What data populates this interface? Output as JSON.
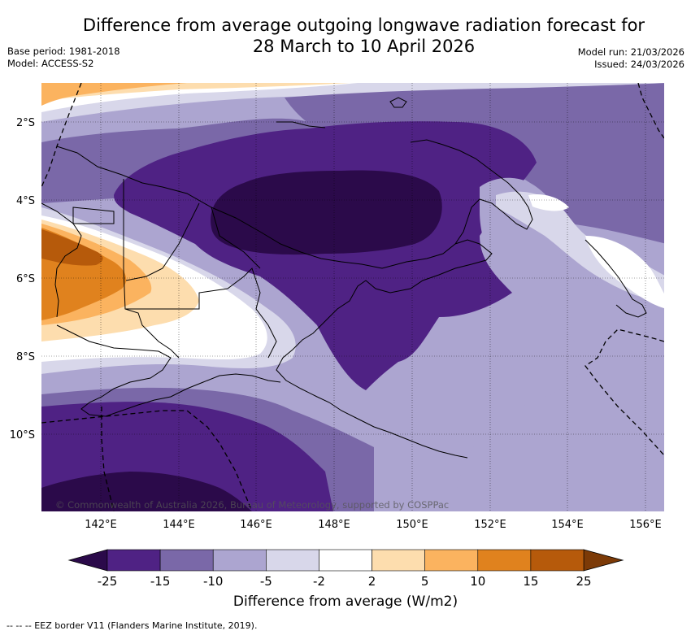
{
  "title_line1": "Difference from average outgoing longwave radiation forecast for",
  "title_line2": "28 March to 10 April 2026",
  "base_period": "Base period: 1981-2018",
  "model": "Model: ACCESS-S2",
  "model_run": "Model run: 21/03/2026",
  "issued": "Issued: 24/03/2026",
  "copyright": "© Commonwealth of Australia 2026, Bureau of Meteorology, supported by COSPPac",
  "lat_ticks": [
    "2°S",
    "4°S",
    "6°S",
    "8°S",
    "10°S"
  ],
  "lon_ticks": [
    "142°E",
    "144°E",
    "146°E",
    "148°E",
    "150°E",
    "152°E",
    "154°E",
    "156°E"
  ],
  "colorbar": {
    "ticks": [
      "-25",
      "-15",
      "-10",
      "-5",
      "-2",
      "2",
      "5",
      "10",
      "15",
      "25"
    ],
    "colors": [
      "#2b0a4a",
      "#4f2284",
      "#7a68a8",
      "#aca5d0",
      "#d8d7ea",
      "#ffffff",
      "#fdddae",
      "#fbb35f",
      "#e0821e",
      "#b65a0b",
      "#7c3a07"
    ],
    "label": "Difference from average (W/m2)"
  },
  "footer": "-- -- -- EEZ border V11 (Flanders Marine Institute, 2019)."
}
